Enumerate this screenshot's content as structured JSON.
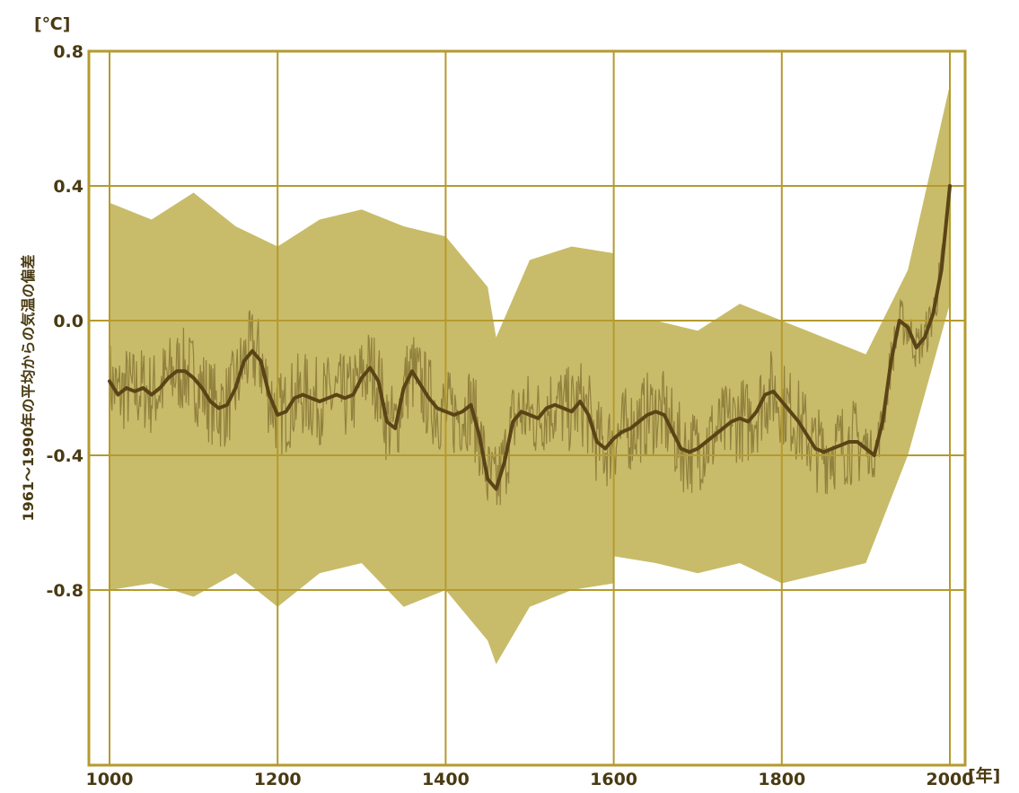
{
  "chart_data": {
    "type": "area",
    "title": "",
    "xlabel": "",
    "ylabel": "1961～1990年の平均からの気温の偏差",
    "x_unit": "[年]",
    "y_unit": "[℃]",
    "xlim": [
      995,
      2010
    ],
    "ylim": [
      -1.3,
      0.8
    ],
    "xticks": [
      1000,
      1200,
      1400,
      1600,
      1800,
      2000
    ],
    "yticks": [
      0.8,
      0.4,
      0.0,
      -0.4,
      -0.8
    ],
    "ytick_labels": [
      "0.8",
      "0.4",
      "0.0",
      "-0.4",
      "-0.8"
    ],
    "grid": true,
    "colors": {
      "band": "#c8bc6a",
      "annual": "#8b7a3a",
      "smoothed": "#5a4416",
      "grid": "#b59a2e",
      "text": "#4a3a12"
    },
    "series": [
      {
        "kind": "smoothed",
        "x": [
          1000,
          1010,
          1020,
          1030,
          1040,
          1050,
          1060,
          1070,
          1080,
          1090,
          1100,
          1110,
          1120,
          1130,
          1140,
          1150,
          1160,
          1170,
          1180,
          1190,
          1200,
          1210,
          1220,
          1230,
          1240,
          1250,
          1260,
          1270,
          1280,
          1290,
          1300,
          1310,
          1320,
          1330,
          1340,
          1350,
          1360,
          1370,
          1380,
          1390,
          1400,
          1410,
          1420,
          1430,
          1440,
          1450,
          1460,
          1470,
          1480,
          1490,
          1500,
          1510,
          1520,
          1530,
          1540,
          1550,
          1560,
          1570,
          1580,
          1590,
          1600,
          1610,
          1620,
          1630,
          1640,
          1650,
          1660,
          1670,
          1680,
          1690,
          1700,
          1710,
          1720,
          1730,
          1740,
          1750,
          1760,
          1770,
          1780,
          1790,
          1800,
          1810,
          1820,
          1830,
          1840,
          1850,
          1860,
          1870,
          1880,
          1890,
          1900,
          1910,
          1920,
          1930,
          1940,
          1950,
          1960,
          1970,
          1980,
          1990,
          2000
        ],
        "values": [
          -0.18,
          -0.22,
          -0.2,
          -0.21,
          -0.2,
          -0.22,
          -0.2,
          -0.17,
          -0.15,
          -0.15,
          -0.17,
          -0.2,
          -0.24,
          -0.26,
          -0.25,
          -0.2,
          -0.12,
          -0.09,
          -0.12,
          -0.22,
          -0.28,
          -0.27,
          -0.23,
          -0.22,
          -0.23,
          -0.24,
          -0.23,
          -0.22,
          -0.23,
          -0.22,
          -0.17,
          -0.14,
          -0.18,
          -0.3,
          -0.32,
          -0.2,
          -0.15,
          -0.19,
          -0.23,
          -0.26,
          -0.27,
          -0.28,
          -0.27,
          -0.25,
          -0.34,
          -0.47,
          -0.5,
          -0.42,
          -0.3,
          -0.27,
          -0.28,
          -0.29,
          -0.26,
          -0.25,
          -0.26,
          -0.27,
          -0.24,
          -0.28,
          -0.36,
          -0.38,
          -0.35,
          -0.33,
          -0.32,
          -0.3,
          -0.28,
          -0.27,
          -0.28,
          -0.33,
          -0.38,
          -0.39,
          -0.38,
          -0.36,
          -0.34,
          -0.32,
          -0.3,
          -0.29,
          -0.3,
          -0.27,
          -0.22,
          -0.21,
          -0.24,
          -0.27,
          -0.3,
          -0.34,
          -0.38,
          -0.39,
          -0.38,
          -0.37,
          -0.36,
          -0.36,
          -0.38,
          -0.4,
          -0.3,
          -0.12,
          0.0,
          -0.02,
          -0.08,
          -0.05,
          0.02,
          0.15,
          0.4
        ]
      },
      {
        "kind": "uncertainty_band",
        "x": [
          1000,
          1050,
          1100,
          1150,
          1200,
          1250,
          1300,
          1350,
          1400,
          1450,
          1460,
          1500,
          1550,
          1600,
          1601,
          1650,
          1700,
          1750,
          1800,
          1850,
          1900,
          1950,
          2000
        ],
        "upper": [
          0.35,
          0.3,
          0.38,
          0.28,
          0.22,
          0.3,
          0.33,
          0.28,
          0.25,
          0.1,
          -0.05,
          0.18,
          0.22,
          0.2,
          0.0,
          0.0,
          -0.03,
          0.05,
          0.0,
          -0.05,
          -0.1,
          0.15,
          0.7
        ],
        "lower": [
          -0.8,
          -0.78,
          -0.82,
          -0.75,
          -0.85,
          -0.75,
          -0.72,
          -0.85,
          -0.8,
          -0.95,
          -1.02,
          -0.85,
          -0.8,
          -0.78,
          -0.7,
          -0.72,
          -0.75,
          -0.72,
          -0.78,
          -0.75,
          -0.72,
          -0.4,
          0.05
        ]
      }
    ]
  }
}
